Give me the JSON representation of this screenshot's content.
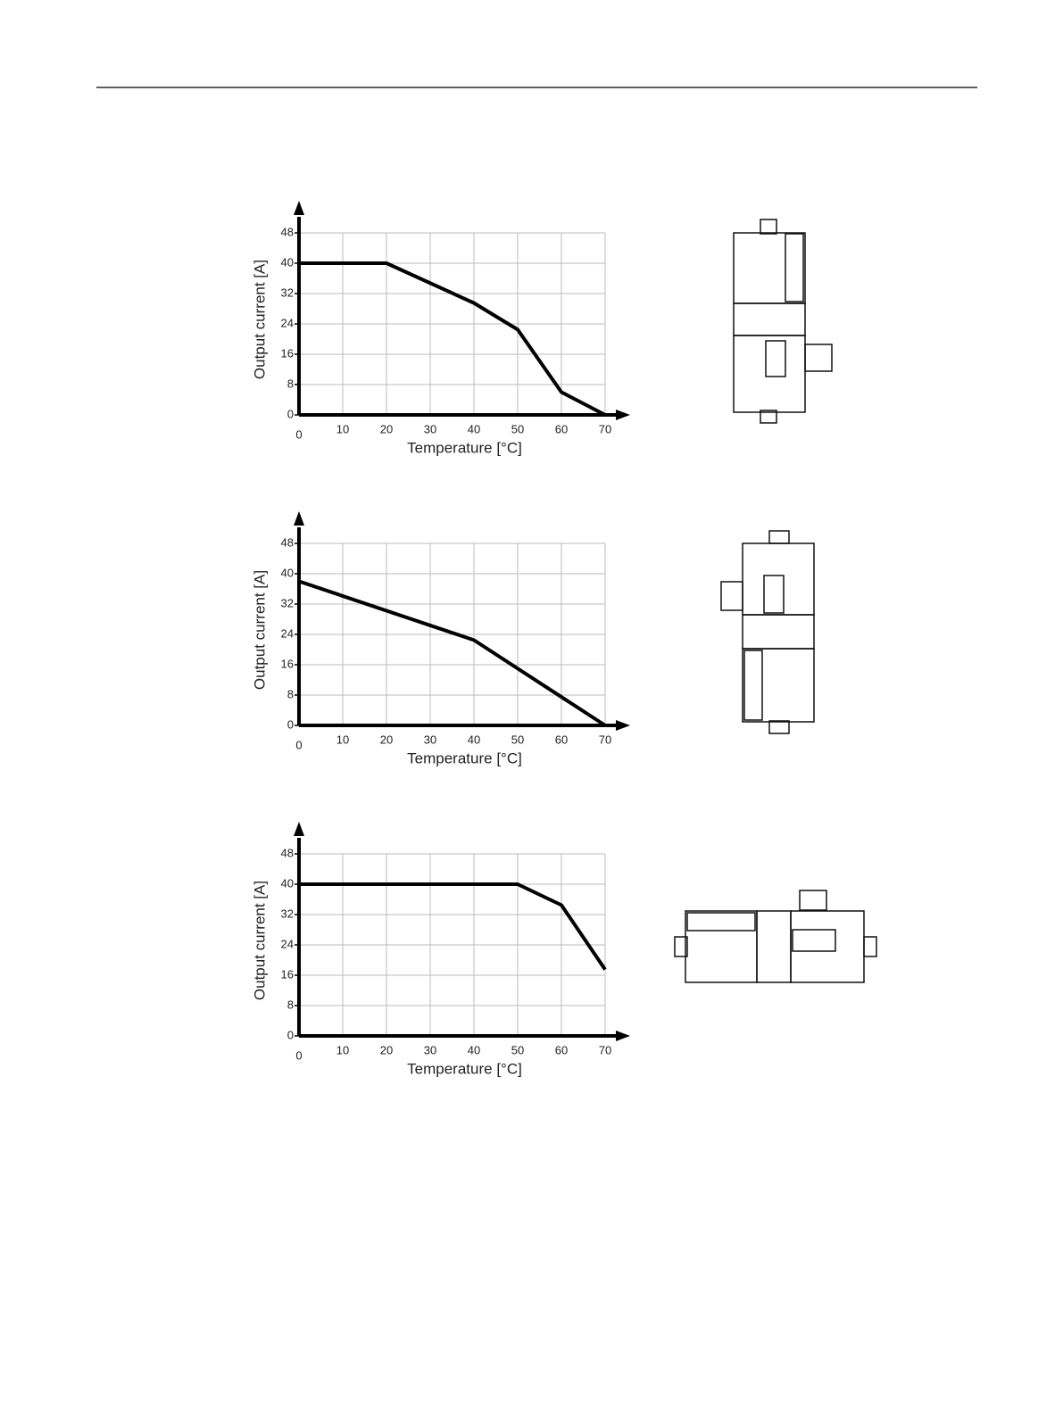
{
  "chart_data": [
    {
      "type": "line",
      "x_label": "Temperature [°C]",
      "y_label": "Output current [A]",
      "x": [
        0,
        20,
        40,
        50,
        60,
        70
      ],
      "values": [
        40,
        40,
        29.5,
        22.5,
        6,
        0
      ],
      "color": "#000000",
      "xlim": [
        0,
        70
      ],
      "ylim": [
        0,
        48
      ],
      "xticks": [
        0,
        10,
        20,
        30,
        40,
        50,
        60,
        70
      ],
      "yticks": [
        0,
        8,
        16,
        24,
        32,
        40,
        48
      ],
      "grid": true
    },
    {
      "type": "line",
      "x_label": "Temperature [°C]",
      "y_label": "Output current [A]",
      "x": [
        0,
        40,
        70
      ],
      "values": [
        38,
        22.5,
        0
      ],
      "color": "#000000",
      "xlim": [
        0,
        70
      ],
      "ylim": [
        0,
        48
      ],
      "xticks": [
        0,
        10,
        20,
        30,
        40,
        50,
        60,
        70
      ],
      "yticks": [
        0,
        8,
        16,
        24,
        32,
        40,
        48
      ],
      "grid": true
    },
    {
      "type": "line",
      "x_label": "Temperature [°C]",
      "y_label": "Output current [A]",
      "x": [
        0,
        50,
        60,
        70
      ],
      "values": [
        40,
        40,
        34.5,
        17.5
      ],
      "color": "#000000",
      "xlim": [
        0,
        70
      ],
      "ylim": [
        0,
        48
      ],
      "xticks": [
        0,
        10,
        20,
        30,
        40,
        50,
        60,
        70
      ],
      "yticks": [
        0,
        8,
        16,
        24,
        32,
        40,
        48
      ],
      "grid": true
    }
  ]
}
